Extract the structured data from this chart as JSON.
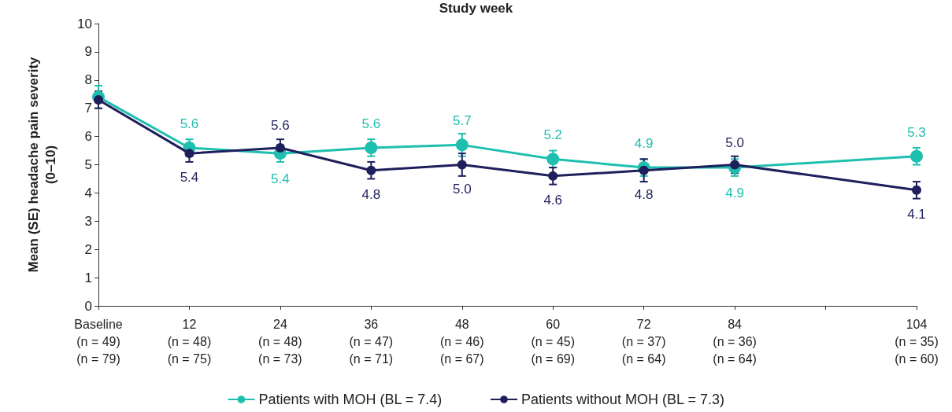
{
  "chart_data": {
    "type": "line",
    "xlabel": "Study week",
    "ylabel": "Mean (SE) headache pain severity\n(0–10)",
    "categories": [
      "Baseline\n(n = 49)\n(n = 79)",
      "12\n(n = 48)\n(n = 75)",
      "24\n(n = 48)\n(n = 73)",
      "36\n(n = 47)\n(n = 71)",
      "48\n(n = 46)\n(n = 67)",
      "60\n(n = 45)\n(n = 69)",
      "72\n(n = 37)\n(n = 64)",
      "84\n(n = 36)\n(n = 64)",
      null,
      "104\n(n = 35)\n(n = 60)"
    ],
    "series": [
      {
        "name": "Patients with MOH (BL = 7.4)",
        "color": "#1fbfb0",
        "values": [
          7.4,
          5.6,
          5.4,
          5.6,
          5.7,
          5.2,
          4.9,
          4.9,
          null,
          5.3
        ],
        "errors": [
          0.4,
          0.3,
          0.3,
          0.3,
          0.4,
          0.3,
          0.3,
          0.3,
          null,
          0.3
        ],
        "value_labels": [
          null,
          "5.6",
          "5.4",
          "5.6",
          "5.7",
          "5.2",
          "4.9",
          "4.9",
          null,
          "5.3"
        ]
      },
      {
        "name": "Patients without MOH (BL = 7.3)",
        "color": "#1f1f5c",
        "values": [
          7.3,
          5.4,
          5.6,
          4.8,
          5.0,
          4.6,
          4.8,
          5.0,
          null,
          4.1
        ],
        "errors": [
          0.3,
          0.3,
          0.3,
          0.3,
          0.4,
          0.3,
          0.4,
          0.3,
          null,
          0.3
        ],
        "value_labels": [
          null,
          "5.4",
          "5.6",
          "4.8",
          "5.0",
          "4.6",
          "4.8",
          "5.0",
          null,
          "4.1"
        ]
      }
    ],
    "ylim": [
      0,
      10
    ],
    "yticks": [
      0,
      1,
      2,
      3,
      4,
      5,
      6,
      7,
      8,
      9,
      10
    ],
    "grid": false,
    "legend": "bottom",
    "marker": "circle",
    "line_style": "solid"
  }
}
